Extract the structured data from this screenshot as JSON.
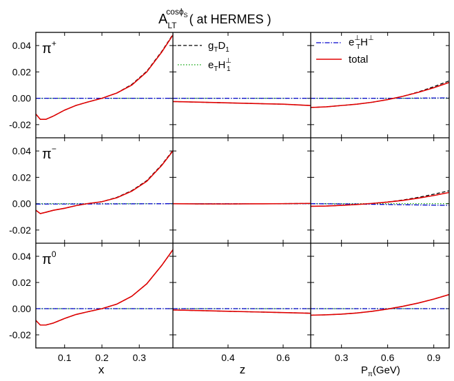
{
  "title": {
    "main": "A",
    "main_sub": "LT",
    "main_sup": "cosϕ",
    "main_sup_sub": "S",
    "rest": "( at  HERMES )"
  },
  "legend_left": [
    {
      "label_main": "g",
      "label_sub": "T",
      "label_after": "D",
      "label_after_sub": "1",
      "series": "gTD1"
    },
    {
      "label_main": "e",
      "label_sub": "T",
      "label_after": "H",
      "label_after_sup": "⊥",
      "label_after_sub": "1",
      "series": "eTH1perp"
    }
  ],
  "legend_right": [
    {
      "label_main": "e",
      "label_sup": "⊥",
      "label_sub": "T",
      "label_after": "H",
      "label_after_sup": "⊥",
      "series": "eTperpHperp"
    },
    {
      "label_plain": "total",
      "series": "total"
    }
  ],
  "row_labels": [
    {
      "base": "π",
      "sup": "+"
    },
    {
      "base": "π",
      "sup": "−"
    },
    {
      "base": "π",
      "sup": "0"
    }
  ],
  "colors": {
    "gTD1": "#000000",
    "eTH1perp": "#00a000",
    "eTperpHperp": "#0000cc",
    "total": "#e00000"
  },
  "chart_data": {
    "type": "line",
    "ylim": [
      -0.03,
      0.05
    ],
    "yticks": [
      -0.02,
      0.0,
      0.02,
      0.04
    ],
    "ytick_labels": [
      "-0.02",
      "0.00",
      "0.02",
      "0.04"
    ],
    "columns": [
      {
        "xlabel": "x",
        "xlim": [
          0.023,
          0.39
        ],
        "xticks": [
          0.1,
          0.2,
          0.3
        ],
        "xtick_labels": [
          "0.1",
          "0.2",
          "0.3"
        ]
      },
      {
        "xlabel": "z",
        "xlim": [
          0.2,
          0.7
        ],
        "xticks": [
          0.4,
          0.6
        ],
        "xtick_labels": [
          "0.4",
          "0.6"
        ]
      },
      {
        "xlabel": "P",
        "xlabel_sub": "π",
        "xlabel_rest": "(GeV)",
        "xlim": [
          0.1,
          1.0
        ],
        "xticks": [
          0.3,
          0.6,
          0.9
        ],
        "xtick_labels": [
          "0.3",
          "0.6",
          "0.9"
        ]
      }
    ],
    "panels": [
      {
        "row": 0,
        "col": 0,
        "total": {
          "x": [
            0.023,
            0.035,
            0.05,
            0.07,
            0.1,
            0.13,
            0.16,
            0.2,
            0.24,
            0.28,
            0.32,
            0.36,
            0.39
          ],
          "y": [
            -0.012,
            -0.016,
            -0.016,
            -0.0135,
            -0.009,
            -0.0055,
            -0.003,
            0.0,
            0.004,
            0.01,
            0.02,
            0.035,
            0.048
          ]
        },
        "gTD1": {
          "x": [
            0.023,
            0.035,
            0.05,
            0.07,
            0.1,
            0.13,
            0.16,
            0.2,
            0.24,
            0.28,
            0.32,
            0.36,
            0.39
          ],
          "y": [
            -0.012,
            -0.016,
            -0.016,
            -0.0135,
            -0.009,
            -0.0055,
            -0.003,
            0.0,
            0.004,
            0.0105,
            0.0205,
            0.0355,
            0.0485
          ]
        },
        "eTH1perp": {
          "x": [
            0.023,
            0.39
          ],
          "y": [
            0.0,
            0.0
          ]
        },
        "eTperpHperp": {
          "x": [
            0.023,
            0.39
          ],
          "y": [
            0.0,
            0.0
          ]
        }
      },
      {
        "row": 0,
        "col": 1,
        "total": {
          "x": [
            0.2,
            0.3,
            0.4,
            0.5,
            0.6,
            0.7
          ],
          "y": [
            -0.0025,
            -0.003,
            -0.0035,
            -0.004,
            -0.0045,
            -0.0055
          ]
        },
        "gTD1": {
          "x": [
            0.2,
            0.3,
            0.4,
            0.5,
            0.6,
            0.7
          ],
          "y": [
            -0.0025,
            -0.003,
            -0.0035,
            -0.004,
            -0.0045,
            -0.0055
          ]
        },
        "eTH1perp": {
          "x": [
            0.2,
            0.7
          ],
          "y": [
            0.0,
            0.0
          ]
        },
        "eTperpHperp": {
          "x": [
            0.2,
            0.7
          ],
          "y": [
            0.0,
            0.0
          ]
        }
      },
      {
        "row": 0,
        "col": 2,
        "total": {
          "x": [
            0.1,
            0.2,
            0.3,
            0.4,
            0.5,
            0.6,
            0.7,
            0.8,
            0.9,
            1.0
          ],
          "y": [
            -0.007,
            -0.0065,
            -0.0055,
            -0.0045,
            -0.003,
            -0.001,
            0.0015,
            0.0045,
            0.008,
            0.012
          ]
        },
        "gTD1": {
          "x": [
            0.1,
            0.2,
            0.3,
            0.4,
            0.5,
            0.6,
            0.7,
            0.8,
            0.9,
            1.0
          ],
          "y": [
            -0.007,
            -0.0065,
            -0.0055,
            -0.0045,
            -0.003,
            -0.001,
            0.0015,
            0.0048,
            0.0088,
            0.0132
          ]
        },
        "eTH1perp": {
          "x": [
            0.1,
            1.0
          ],
          "y": [
            0.0,
            0.0
          ]
        },
        "eTperpHperp": {
          "x": [
            0.1,
            0.4,
            0.7,
            1.0
          ],
          "y": [
            0.0,
            0.0,
            0.0,
            0.0003
          ]
        }
      },
      {
        "row": 1,
        "col": 0,
        "total": {
          "x": [
            0.023,
            0.035,
            0.05,
            0.07,
            0.1,
            0.13,
            0.16,
            0.2,
            0.24,
            0.28,
            0.32,
            0.36,
            0.39
          ],
          "y": [
            -0.005,
            -0.0075,
            -0.0065,
            -0.005,
            -0.0035,
            -0.0015,
            0.0,
            0.0015,
            0.0045,
            0.0095,
            0.017,
            0.029,
            0.04
          ]
        },
        "gTD1": {
          "x": [
            0.023,
            0.035,
            0.05,
            0.07,
            0.1,
            0.13,
            0.16,
            0.2,
            0.24,
            0.28,
            0.32,
            0.36,
            0.39
          ],
          "y": [
            -0.005,
            -0.0075,
            -0.0065,
            -0.005,
            -0.0035,
            -0.0015,
            0.0,
            0.0015,
            0.0048,
            0.0099,
            0.0175,
            0.0295,
            0.0405
          ]
        },
        "eTH1perp": {
          "x": [
            0.023,
            0.39
          ],
          "y": [
            0.0,
            0.0
          ]
        },
        "eTperpHperp": {
          "x": [
            0.023,
            0.2,
            0.39
          ],
          "y": [
            -0.0003,
            -0.0002,
            0.0
          ]
        }
      },
      {
        "row": 1,
        "col": 1,
        "total": {
          "x": [
            0.2,
            0.3,
            0.4,
            0.5,
            0.6,
            0.7
          ],
          "y": [
            0.0,
            -0.0002,
            -0.0002,
            -0.0001,
            0.0,
            0.0002
          ]
        },
        "gTD1": {
          "x": [
            0.2,
            0.3,
            0.4,
            0.5,
            0.6,
            0.7
          ],
          "y": [
            0.0,
            -0.0002,
            -0.0002,
            -0.0001,
            0.0,
            0.0002
          ]
        },
        "eTH1perp": {
          "x": [
            0.2,
            0.7
          ],
          "y": [
            0.0,
            0.0
          ]
        },
        "eTperpHperp": {
          "x": [
            0.2,
            0.7
          ],
          "y": [
            0.0,
            0.0
          ]
        }
      },
      {
        "row": 1,
        "col": 2,
        "total": {
          "x": [
            0.1,
            0.2,
            0.3,
            0.4,
            0.5,
            0.6,
            0.7,
            0.8,
            0.9,
            1.0
          ],
          "y": [
            -0.002,
            -0.0018,
            -0.0013,
            -0.0006,
            0.0002,
            0.0012,
            0.0025,
            0.0042,
            0.0062,
            0.0085
          ]
        },
        "gTD1": {
          "x": [
            0.1,
            0.2,
            0.3,
            0.4,
            0.5,
            0.6,
            0.7,
            0.8,
            0.9,
            1.0
          ],
          "y": [
            -0.002,
            -0.0018,
            -0.0013,
            -0.0006,
            0.0002,
            0.0013,
            0.0028,
            0.0048,
            0.0072,
            0.0098
          ]
        },
        "eTH1perp": {
          "x": [
            0.1,
            1.0
          ],
          "y": [
            0.0,
            0.0
          ]
        },
        "eTperpHperp": {
          "x": [
            0.1,
            0.4,
            0.7,
            1.0
          ],
          "y": [
            0.0,
            -0.0003,
            -0.0008,
            -0.0013
          ]
        }
      },
      {
        "row": 2,
        "col": 0,
        "total": {
          "x": [
            0.023,
            0.035,
            0.05,
            0.07,
            0.1,
            0.13,
            0.16,
            0.2,
            0.24,
            0.28,
            0.32,
            0.36,
            0.39
          ],
          "y": [
            -0.009,
            -0.0125,
            -0.0125,
            -0.011,
            -0.0075,
            -0.0045,
            -0.0025,
            0.0,
            0.0035,
            0.0095,
            0.019,
            0.033,
            0.045
          ]
        },
        "gTD1": {
          "x": [
            0.023,
            0.035,
            0.05,
            0.07,
            0.1,
            0.13,
            0.16,
            0.2,
            0.24,
            0.28,
            0.32,
            0.36,
            0.39
          ],
          "y": [
            -0.009,
            -0.0125,
            -0.0125,
            -0.011,
            -0.0075,
            -0.0045,
            -0.0025,
            0.0,
            0.0035,
            0.0095,
            0.019,
            0.033,
            0.045
          ]
        },
        "eTH1perp": {
          "x": [
            0.023,
            0.39
          ],
          "y": [
            0.0,
            0.0
          ]
        },
        "eTperpHperp": {
          "x": [
            0.023,
            0.39
          ],
          "y": [
            0.0,
            0.0
          ]
        }
      },
      {
        "row": 2,
        "col": 1,
        "total": {
          "x": [
            0.2,
            0.3,
            0.4,
            0.5,
            0.6,
            0.7
          ],
          "y": [
            -0.001,
            -0.0015,
            -0.002,
            -0.0025,
            -0.003,
            -0.0035
          ]
        },
        "gTD1": {
          "x": [
            0.2,
            0.3,
            0.4,
            0.5,
            0.6,
            0.7
          ],
          "y": [
            -0.001,
            -0.0015,
            -0.002,
            -0.0025,
            -0.003,
            -0.0035
          ]
        },
        "eTH1perp": {
          "x": [
            0.2,
            0.7
          ],
          "y": [
            0.0,
            0.0
          ]
        },
        "eTperpHperp": {
          "x": [
            0.2,
            0.7
          ],
          "y": [
            0.0,
            0.0
          ]
        }
      },
      {
        "row": 2,
        "col": 2,
        "total": {
          "x": [
            0.1,
            0.2,
            0.3,
            0.4,
            0.5,
            0.6,
            0.7,
            0.8,
            0.9,
            1.0
          ],
          "y": [
            -0.005,
            -0.0047,
            -0.0042,
            -0.0033,
            -0.002,
            -0.0003,
            0.0018,
            0.0043,
            0.0073,
            0.0108
          ]
        },
        "gTD1": {
          "x": [
            0.1,
            0.2,
            0.3,
            0.4,
            0.5,
            0.6,
            0.7,
            0.8,
            0.9,
            1.0
          ],
          "y": [
            -0.005,
            -0.0047,
            -0.0042,
            -0.0033,
            -0.002,
            -0.0003,
            0.0018,
            0.0043,
            0.0073,
            0.0108
          ]
        },
        "eTH1perp": {
          "x": [
            0.1,
            1.0
          ],
          "y": [
            0.0,
            0.0
          ]
        },
        "eTperpHperp": {
          "x": [
            0.1,
            1.0
          ],
          "y": [
            0.0,
            0.0
          ]
        }
      }
    ]
  }
}
